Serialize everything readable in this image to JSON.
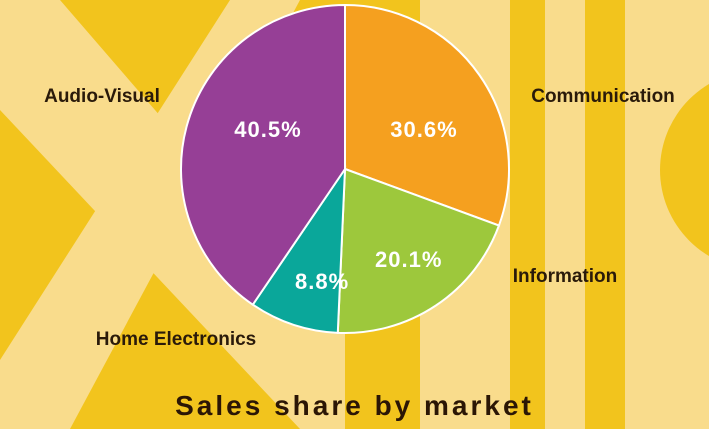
{
  "chart_data": {
    "type": "pie",
    "title": "Sales share by market",
    "categories": [
      "Communication",
      "Information",
      "Home Electronics",
      "Audio-Visual"
    ],
    "values": [
      30.6,
      20.1,
      8.8,
      40.5
    ],
    "value_labels": [
      "30.6%",
      "20.1%",
      "8.8%",
      "40.5%"
    ],
    "colors": [
      "#f5a01f",
      "#9dc83c",
      "#0aa79a",
      "#963f96"
    ]
  }
}
